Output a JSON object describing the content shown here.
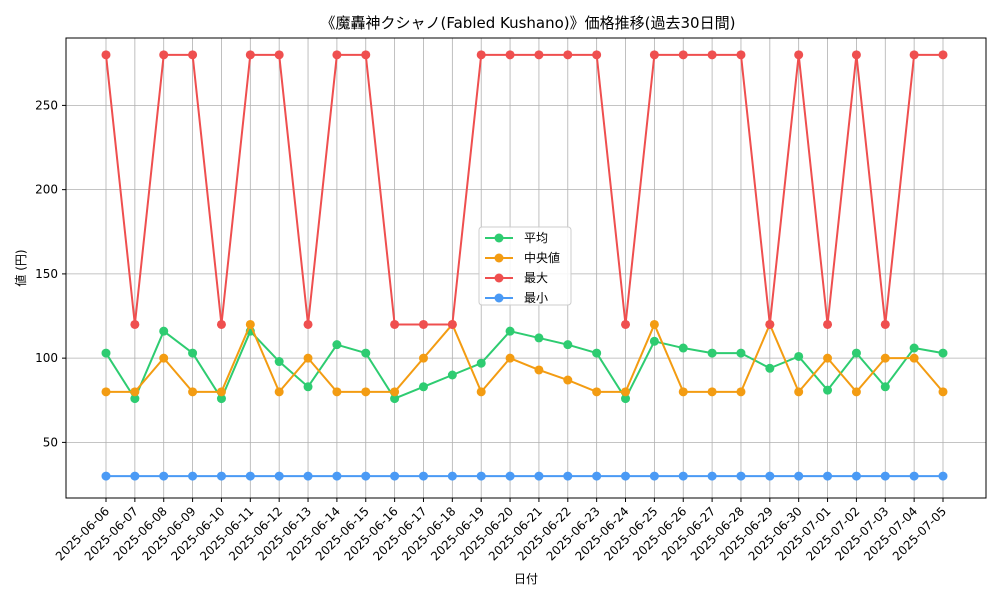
{
  "chart_data": {
    "type": "line",
    "title": "《魔轟神クシャノ(Fabled Kushano)》価格推移(過去30日間)",
    "xlabel": "日付",
    "ylabel": "値 (円)",
    "ylim": [
      17,
      290
    ],
    "yticks": [
      50,
      100,
      150,
      200,
      250
    ],
    "grid": true,
    "legend_position": "center",
    "categories": [
      "2025-06-06",
      "2025-06-07",
      "2025-06-08",
      "2025-06-09",
      "2025-06-10",
      "2025-06-11",
      "2025-06-12",
      "2025-06-13",
      "2025-06-14",
      "2025-06-15",
      "2025-06-16",
      "2025-06-17",
      "2025-06-18",
      "2025-06-19",
      "2025-06-20",
      "2025-06-21",
      "2025-06-22",
      "2025-06-23",
      "2025-06-24",
      "2025-06-25",
      "2025-06-26",
      "2025-06-27",
      "2025-06-28",
      "2025-06-29",
      "2025-06-30",
      "2025-07-01",
      "2025-07-02",
      "2025-07-03",
      "2025-07-04",
      "2025-07-05"
    ],
    "series": [
      {
        "name": "平均",
        "color": "#2ecc71",
        "values": [
          103,
          76,
          116,
          103,
          76,
          116,
          98,
          83,
          108,
          103,
          76,
          83,
          90,
          97,
          116,
          112,
          108,
          103,
          76,
          110,
          106,
          103,
          103,
          94,
          101,
          81,
          103,
          83,
          106,
          103
        ]
      },
      {
        "name": "中央値",
        "color": "#f39c12",
        "values": [
          80,
          80,
          100,
          80,
          80,
          120,
          80,
          100,
          80,
          80,
          80,
          100,
          120,
          80,
          100,
          93,
          87,
          80,
          80,
          120,
          80,
          80,
          80,
          120,
          80,
          100,
          80,
          100,
          100,
          80
        ]
      },
      {
        "name": "最大",
        "color": "#ef4f4f",
        "values": [
          280,
          120,
          280,
          280,
          120,
          280,
          280,
          120,
          280,
          280,
          120,
          120,
          120,
          280,
          280,
          280,
          280,
          280,
          120,
          280,
          280,
          280,
          280,
          120,
          280,
          120,
          280,
          120,
          280,
          280
        ]
      },
      {
        "name": "最小",
        "color": "#4a9af5",
        "values": [
          30,
          30,
          30,
          30,
          30,
          30,
          30,
          30,
          30,
          30,
          30,
          30,
          30,
          30,
          30,
          30,
          30,
          30,
          30,
          30,
          30,
          30,
          30,
          30,
          30,
          30,
          30,
          30,
          30,
          30
        ]
      }
    ]
  }
}
